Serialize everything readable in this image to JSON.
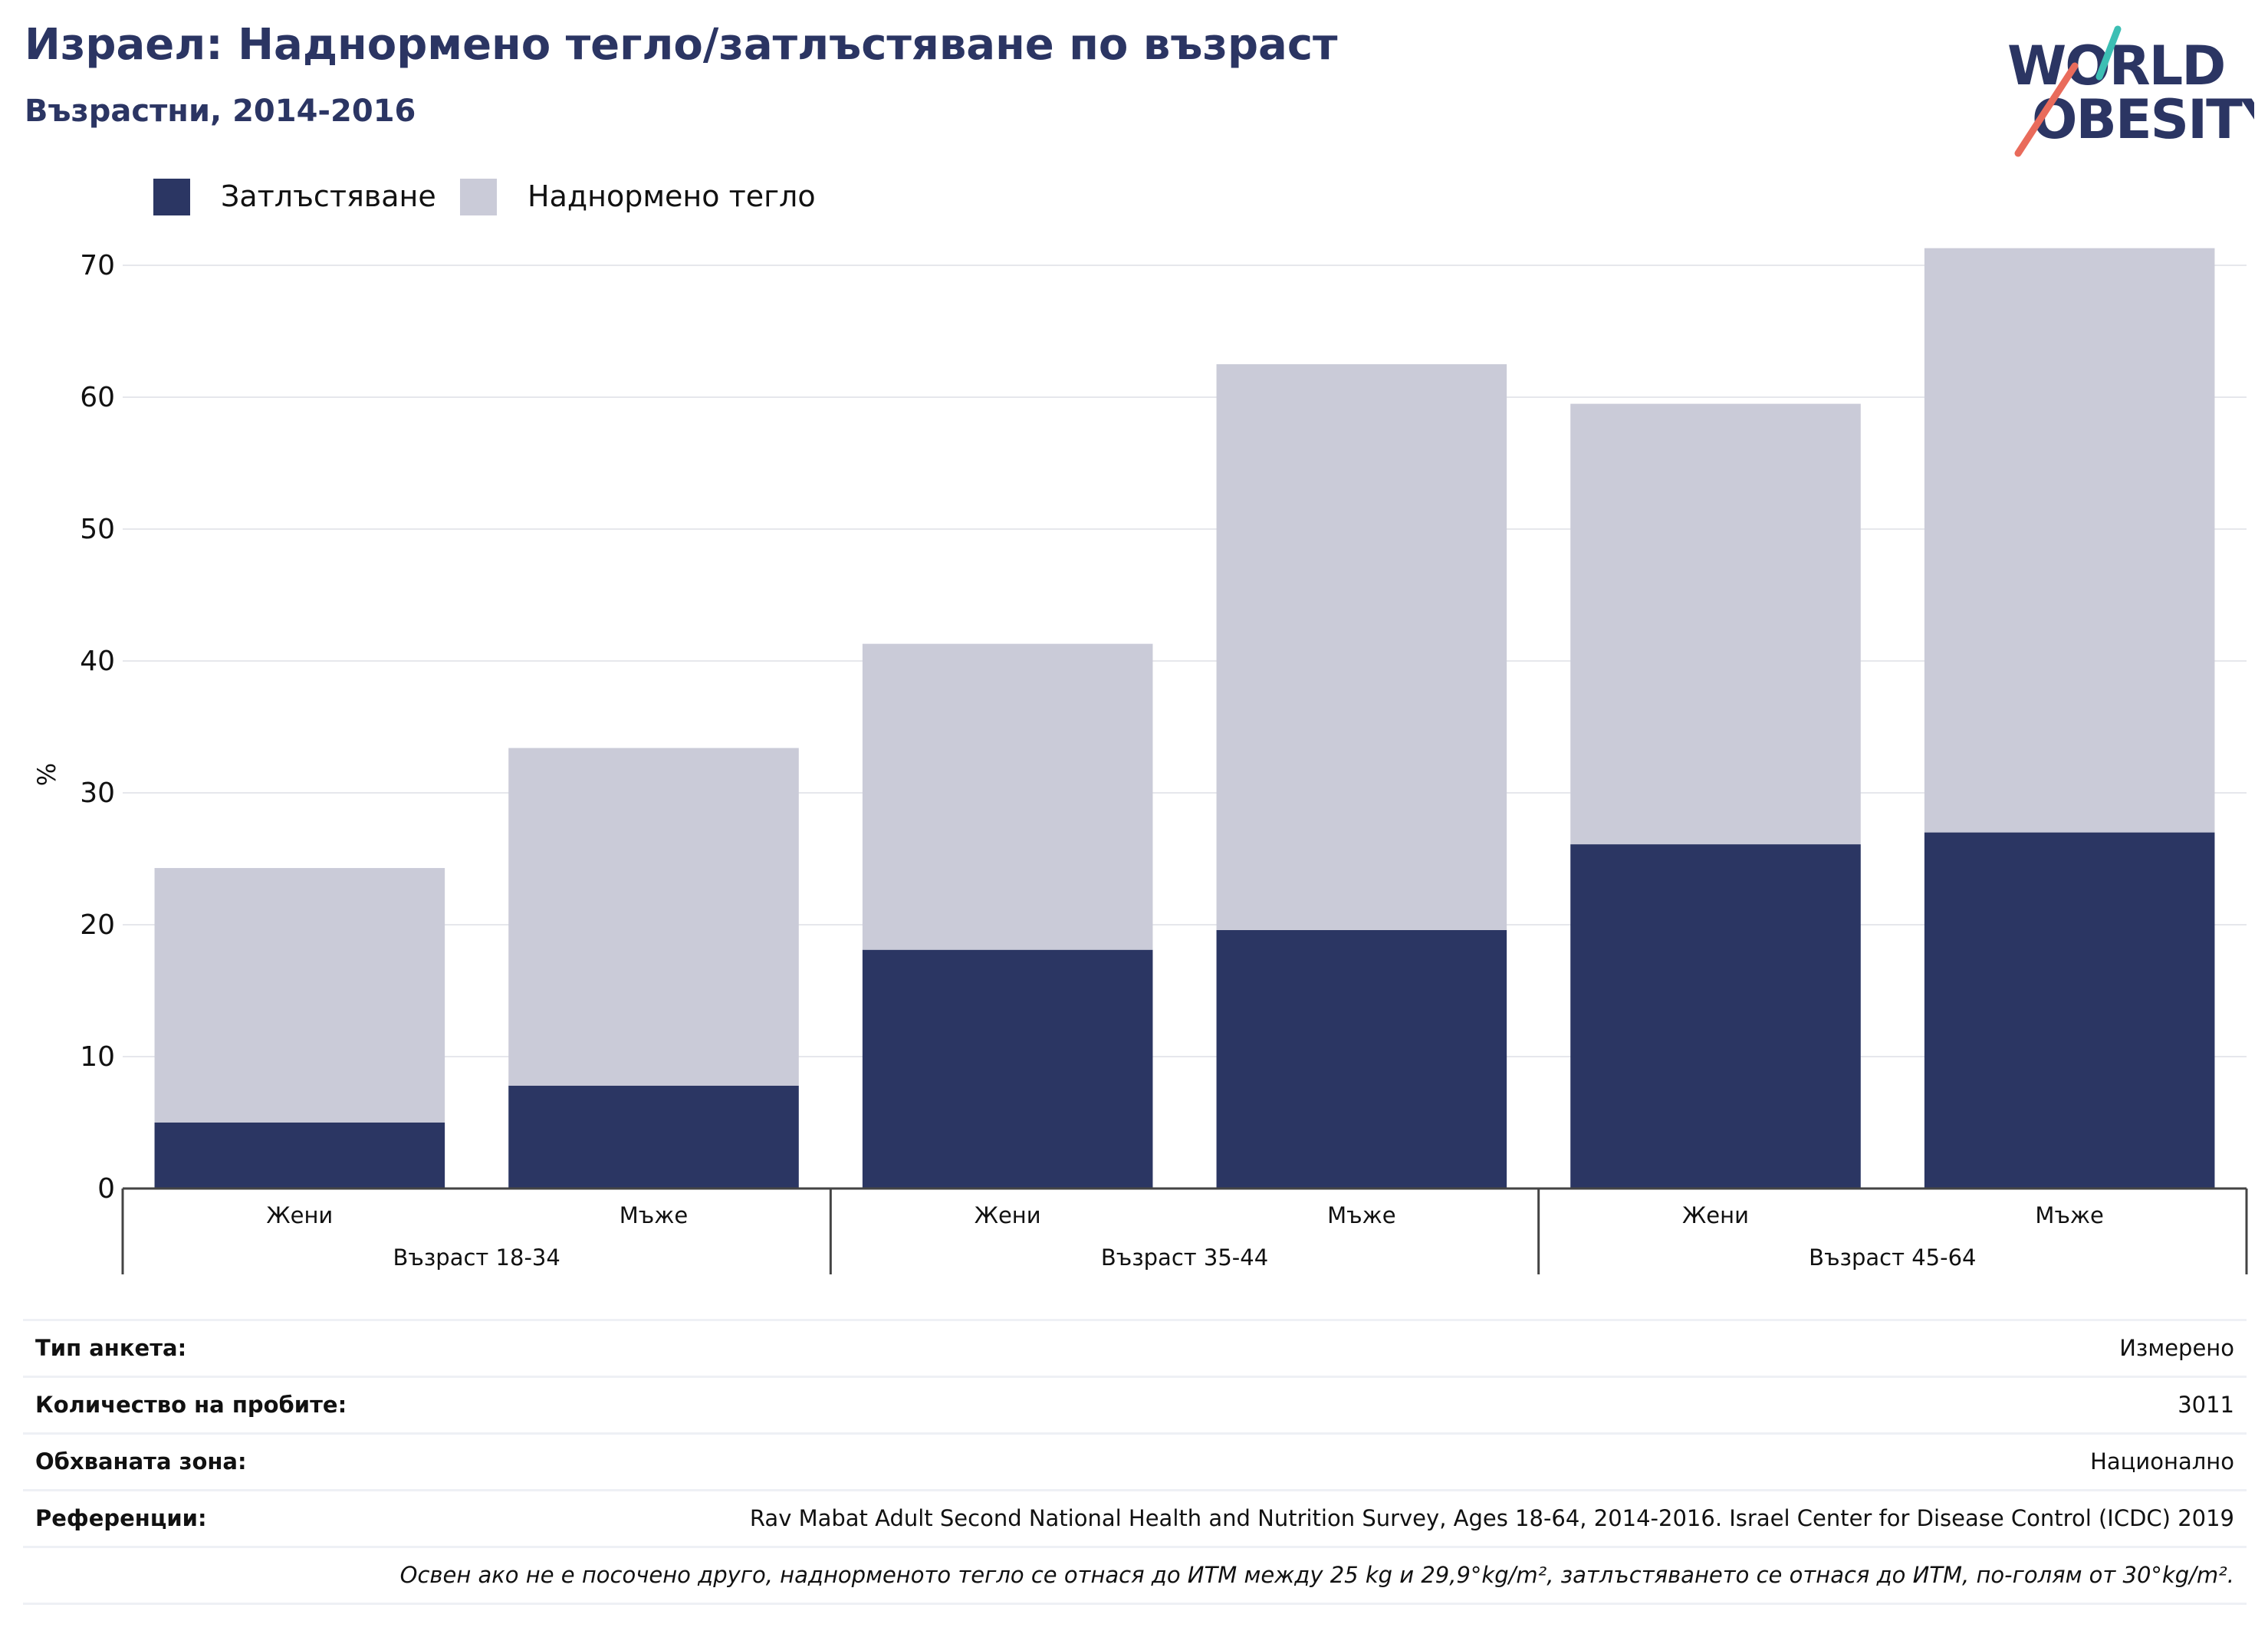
{
  "header": {
    "title": "Израел: Наднормено тегло/затлъстяване по възраст",
    "subtitle": "Възрастни, 2014-2016"
  },
  "logo": {
    "line1": "WORLD",
    "line2": "OBESITY"
  },
  "colors": {
    "obesity": "#2b3663",
    "overweight": "#cacbd8",
    "title": "#2b3563",
    "logo_teal": "#3cbfb4",
    "logo_red": "#e96b5b"
  },
  "chart_data": {
    "type": "bar",
    "stacked": true,
    "ylabel": "%",
    "ylim": [
      0,
      75
    ],
    "yticks": [
      0,
      10,
      20,
      30,
      40,
      50,
      60,
      70
    ],
    "grid": true,
    "legend_position": "top-left",
    "groups": [
      "Възраст 18-34",
      "Възраст 35-44",
      "Възраст 45-64"
    ],
    "categories": [
      "Жени",
      "Мъже",
      "Жени",
      "Мъже",
      "Жени",
      "Мъже"
    ],
    "category_group": [
      0,
      0,
      1,
      1,
      2,
      2
    ],
    "series": [
      {
        "name": "Затлъстяване",
        "values": [
          5.0,
          7.8,
          18.1,
          19.6,
          26.1,
          27.0
        ]
      },
      {
        "name": "Наднормено тегло",
        "values": [
          19.3,
          25.6,
          23.2,
          42.9,
          33.4,
          44.3
        ]
      }
    ]
  },
  "survey": {
    "rows": [
      {
        "label": "Тип анкета:",
        "value": "Измерено"
      },
      {
        "label": "Количество на пробите:",
        "value": "3011"
      },
      {
        "label": "Обхваната зона:",
        "value": "Национално"
      },
      {
        "label": "Референции:",
        "value": "Rav Mabat Adult Second National Health and Nutrition Survey, Ages 18-64, 2014-2016. Israel Center for Disease Control (ICDC) 2019"
      }
    ],
    "note": "Освен ако не е посочено друго, наднорменото тегло се отнася до ИТМ между 25 kg и 29,9°kg/m², затлъстяването се отнася до ИТМ, по-голям от 30°kg/m²."
  }
}
